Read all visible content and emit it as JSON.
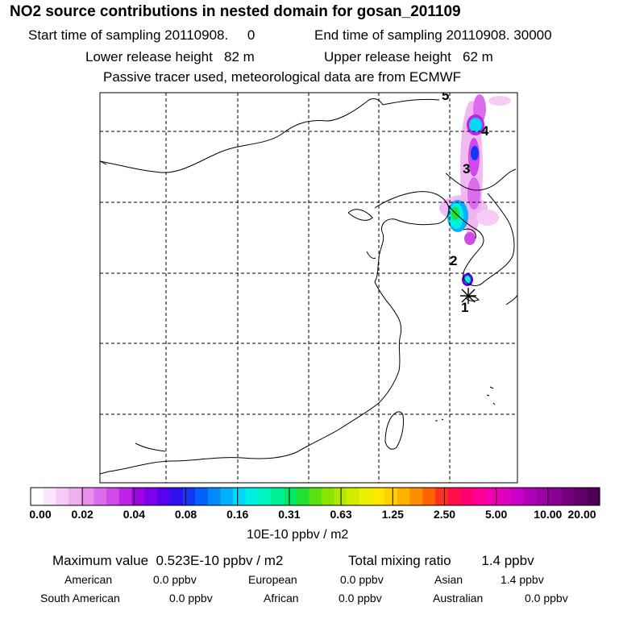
{
  "header": {
    "title": "NO2 source contributions in nested domain for gosan_201109",
    "start_label": "Start time of sampling 20110908.",
    "start_value": "0",
    "end_label": "End time of sampling 20110908. 30000",
    "lower_label": "Lower release height",
    "lower_value": "82 m",
    "upper_label": "Upper release height",
    "upper_value": "62 m",
    "tracer_note": "Passive tracer used, meteorological data are from ECMWF"
  },
  "map": {
    "trajectory_labels": [
      "1",
      "2",
      "3",
      "4",
      "5"
    ]
  },
  "chart_data": {
    "type": "heatmap",
    "title": "NO2 source contributions in nested domain for gosan_201109",
    "colorbar": {
      "unit": "10E-10 ppbv / m2",
      "tick_labels": [
        "0.00",
        "0.02",
        "0.04",
        "0.08",
        "0.16",
        "0.31",
        "0.63",
        "1.25",
        "2.50",
        "5.00",
        "10.00",
        "20.00"
      ],
      "colors": [
        "#ffffff",
        "#fbe6fb",
        "#f6ccf6",
        "#f0b0f0",
        "#e890ee",
        "#dc6cec",
        "#cf4ae8",
        "#bd22e6",
        "#a000e6",
        "#7d00e8",
        "#5a00ec",
        "#3010f0",
        "#1238f6",
        "#0060fa",
        "#0088fc",
        "#00b0fc",
        "#00d8f8",
        "#00f0e0",
        "#00f4bc",
        "#00f094",
        "#00e868",
        "#20e030",
        "#58e010",
        "#88e400",
        "#b0e800",
        "#d0ec00",
        "#ecf000",
        "#ffe800",
        "#ffd000",
        "#ffb000",
        "#ff8c00",
        "#ff6000",
        "#ff3020",
        "#ff1048",
        "#ff0070",
        "#ff0098",
        "#f000b0",
        "#e000c0",
        "#c800c8",
        "#b000b8",
        "#9c00a8",
        "#880094",
        "#74007e",
        "#600068",
        "#4c0054"
      ]
    }
  },
  "summary": {
    "max_label": "Maximum value",
    "max_value": "0.523E-10 ppbv / m2",
    "total_label": "Total mixing ratio",
    "total_value": "1.4 ppbv",
    "regions": [
      {
        "name": "American",
        "value": "0.0 ppbv"
      },
      {
        "name": "European",
        "value": "0.0 ppbv"
      },
      {
        "name": "Asian",
        "value": "1.4 ppbv"
      },
      {
        "name": "South American",
        "value": "0.0 ppbv"
      },
      {
        "name": "African",
        "value": "0.0 ppbv"
      },
      {
        "name": "Australian",
        "value": "0.0 ppbv"
      }
    ]
  }
}
